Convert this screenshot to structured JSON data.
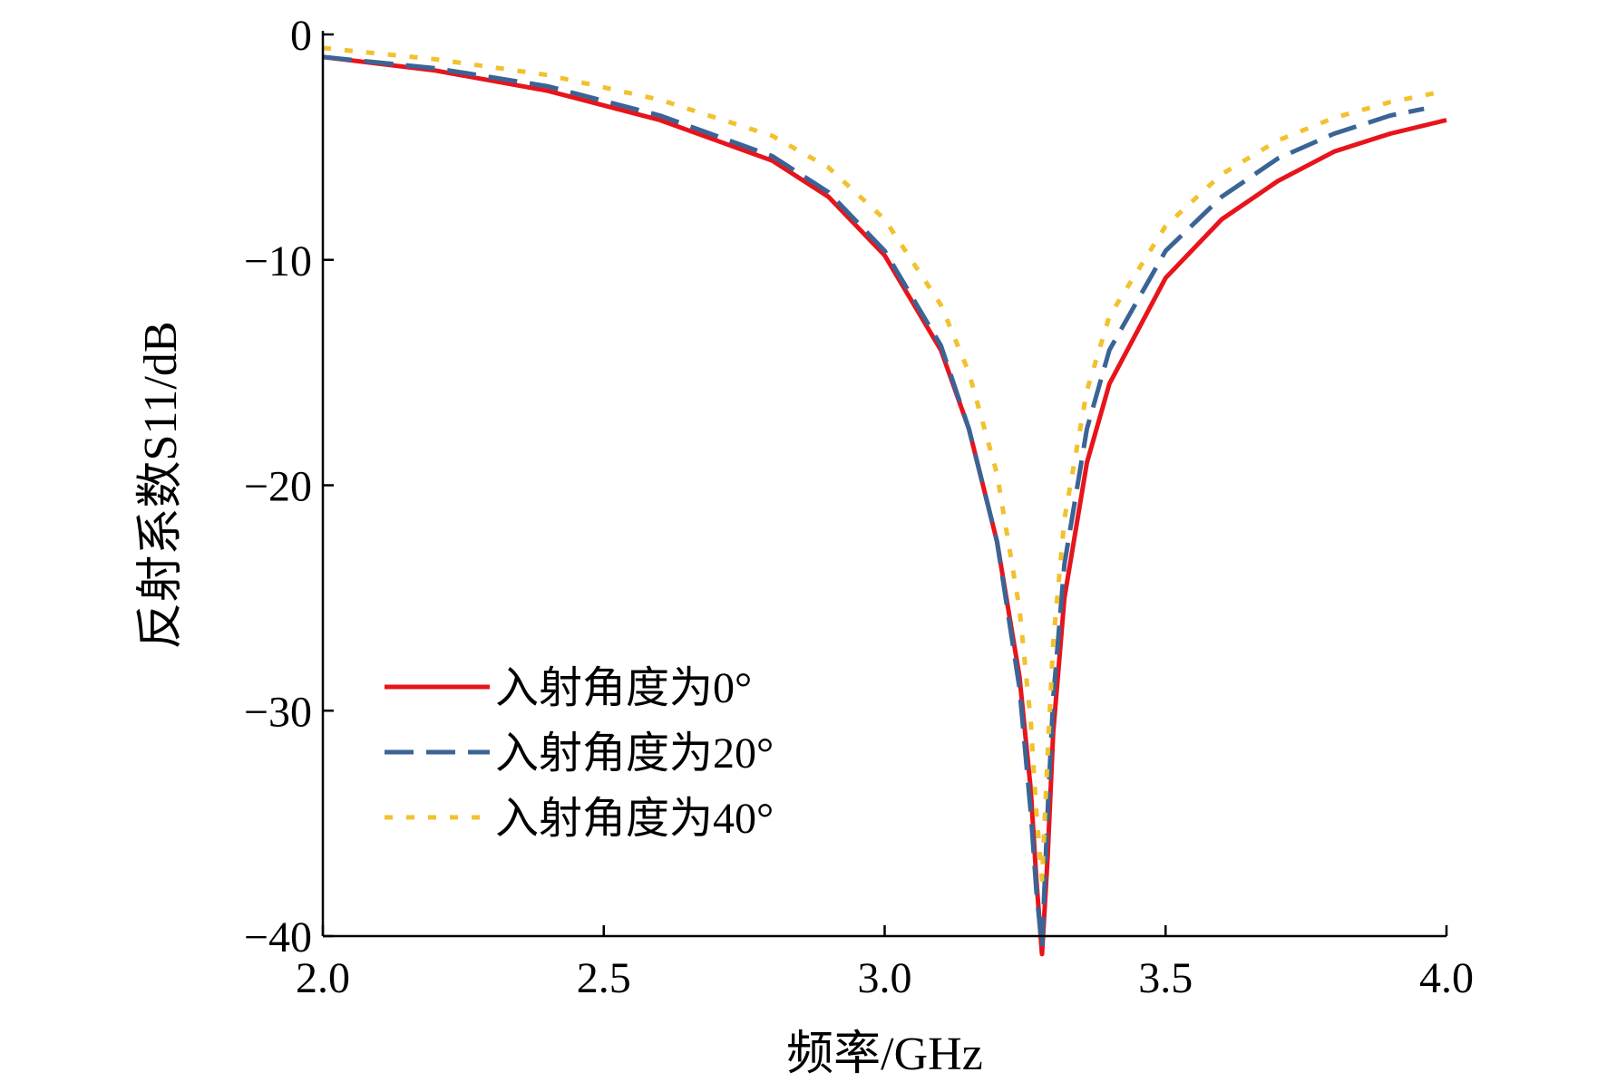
{
  "chart_data": {
    "type": "line",
    "title": "",
    "xlabel": "频率/GHz",
    "ylabel": "反射系数S11/dB",
    "xlim": [
      2.0,
      4.0
    ],
    "ylim": [
      -40,
      0
    ],
    "xticks": [
      2.0,
      2.5,
      3.0,
      3.5,
      4.0
    ],
    "xtick_labels": [
      "2.0",
      "2.5",
      "3.0",
      "3.5",
      "4.0"
    ],
    "yticks": [
      0,
      -10,
      -20,
      -30,
      -40
    ],
    "ytick_labels": [
      "0",
      "−10",
      "−20",
      "−30",
      "−40"
    ],
    "grid": false,
    "legend": {
      "placement": "bottom-left"
    },
    "series": [
      {
        "name": "入射角度为0°",
        "color": "#e8141b",
        "style": "solid",
        "x": [
          2.0,
          2.2,
          2.4,
          2.6,
          2.8,
          2.9,
          3.0,
          3.1,
          3.15,
          3.2,
          3.24,
          3.26,
          3.27,
          3.28,
          3.29,
          3.3,
          3.32,
          3.36,
          3.4,
          3.5,
          3.6,
          3.7,
          3.8,
          3.9,
          4.0
        ],
        "y": [
          -1.0,
          -1.6,
          -2.5,
          -3.8,
          -5.6,
          -7.2,
          -9.8,
          -14.0,
          -17.5,
          -22.5,
          -28.5,
          -33.5,
          -37.5,
          -40.8,
          -36.5,
          -31.0,
          -25.0,
          -19.0,
          -15.5,
          -10.8,
          -8.2,
          -6.5,
          -5.2,
          -4.4,
          -3.8
        ]
      },
      {
        "name": "入射角度为20°",
        "color": "#3b6496",
        "style": "dashed",
        "x": [
          2.0,
          2.2,
          2.4,
          2.6,
          2.8,
          2.9,
          3.0,
          3.1,
          3.15,
          3.2,
          3.24,
          3.26,
          3.27,
          3.28,
          3.29,
          3.3,
          3.32,
          3.36,
          3.4,
          3.5,
          3.6,
          3.7,
          3.8,
          3.9,
          3.96
        ],
        "y": [
          -1.0,
          -1.5,
          -2.3,
          -3.6,
          -5.4,
          -7.0,
          -9.6,
          -13.8,
          -17.5,
          -22.5,
          -29.0,
          -34.5,
          -38.0,
          -40.5,
          -34.5,
          -29.5,
          -23.5,
          -17.5,
          -14.0,
          -9.6,
          -7.2,
          -5.5,
          -4.4,
          -3.6,
          -3.3
        ]
      },
      {
        "name": "入射角度为40°",
        "color": "#f2c12e",
        "style": "dotted",
        "x": [
          2.0,
          2.2,
          2.4,
          2.6,
          2.8,
          2.9,
          3.0,
          3.1,
          3.15,
          3.2,
          3.24,
          3.26,
          3.27,
          3.28,
          3.29,
          3.3,
          3.32,
          3.36,
          3.4,
          3.5,
          3.6,
          3.7,
          3.8,
          3.9,
          3.98
        ],
        "y": [
          -0.6,
          -1.1,
          -1.8,
          -2.9,
          -4.5,
          -5.9,
          -8.2,
          -12.0,
          -15.0,
          -19.5,
          -25.5,
          -30.5,
          -34.5,
          -37.5,
          -32.0,
          -27.0,
          -21.5,
          -15.8,
          -12.5,
          -8.5,
          -6.2,
          -4.7,
          -3.7,
          -3.0,
          -2.6
        ]
      }
    ]
  }
}
